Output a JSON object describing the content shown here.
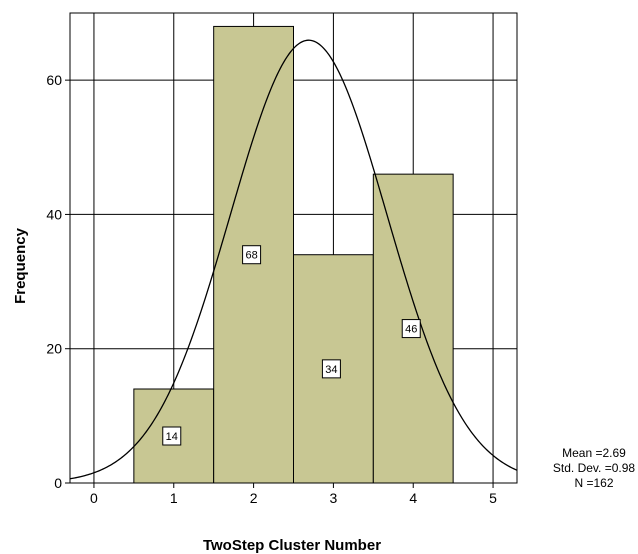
{
  "chart_data": {
    "type": "bar",
    "title": "",
    "xlabel": "TwoStep Cluster Number",
    "ylabel": "Frequency",
    "categories": [
      "1",
      "2",
      "3",
      "4"
    ],
    "bins": [
      {
        "x0": 0.5,
        "x1": 1.5,
        "value": 14
      },
      {
        "x0": 1.5,
        "x1": 2.5,
        "value": 68
      },
      {
        "x0": 2.5,
        "x1": 3.5,
        "value": 34
      },
      {
        "x0": 3.5,
        "x1": 4.5,
        "value": 46
      }
    ],
    "values": [
      14,
      68,
      34,
      46
    ],
    "data_labels": [
      "14",
      "68",
      "34",
      "46"
    ],
    "xlim": [
      -0.3,
      5.3
    ],
    "ylim": [
      0,
      70
    ],
    "x_ticks": [
      0,
      1,
      2,
      3,
      4,
      5
    ],
    "y_ticks": [
      0,
      20,
      40,
      60
    ],
    "x_tick_labels": [
      "0",
      "1",
      "2",
      "3",
      "4",
      "5"
    ],
    "y_tick_labels": [
      "0",
      "20",
      "40",
      "60"
    ],
    "grid": true,
    "normal_curve": {
      "mean": 2.69,
      "std": 0.98,
      "n": 162,
      "bin_width": 1
    },
    "bar_color": "#c8c793",
    "stats": {
      "mean": "Mean =2.69",
      "std": "Std. Dev. =0.98",
      "n": "N =162"
    }
  }
}
